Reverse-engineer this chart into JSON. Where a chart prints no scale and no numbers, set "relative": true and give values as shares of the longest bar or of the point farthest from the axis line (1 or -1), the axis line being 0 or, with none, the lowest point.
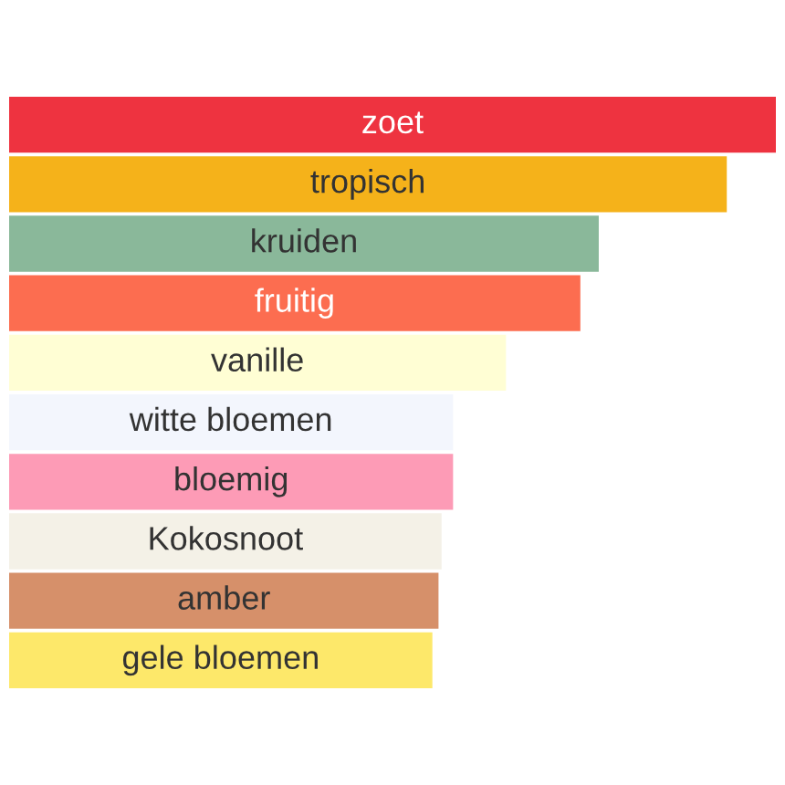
{
  "chart_data": {
    "type": "bar",
    "orientation": "horizontal",
    "relative": true,
    "categories": [
      "zoet",
      "tropisch",
      "kruiden",
      "fruitig",
      "vanille",
      "witte bloemen",
      "bloemig",
      "Kokosnoot",
      "amber",
      "gele bloemen"
    ],
    "values": [
      1,
      0.936,
      0.769,
      0.745,
      0.648,
      0.579,
      0.579,
      0.564,
      0.56,
      0.552
    ],
    "colors": [
      "#ee3340",
      "#f5b21a",
      "#8ab89a",
      "#fc6d50",
      "#fffed4",
      "#f3f6fd",
      "#fd9bb6",
      "#f4f1e7",
      "#d6906a",
      "#fde86a"
    ]
  }
}
